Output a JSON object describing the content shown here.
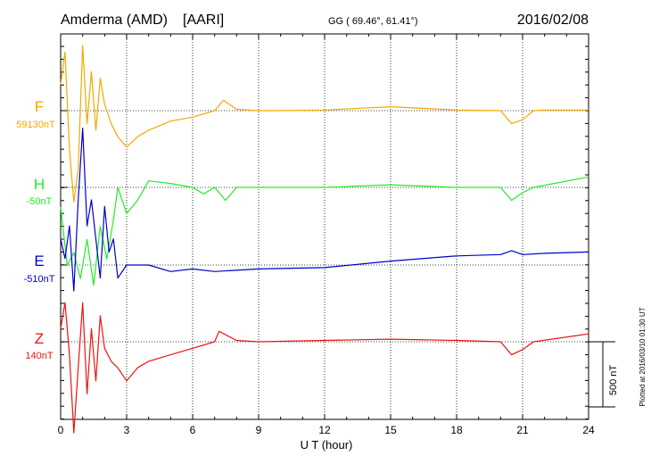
{
  "header": {
    "station": "Amderma (AMD)",
    "network": "[AARI]",
    "coords": "GG ( 69.46°,  61.41°)",
    "date": "2016/02/08"
  },
  "side_note": "Plotted at 2016/03/10 01:30 UT",
  "scale_bar": {
    "label": "500 nT",
    "value": 500
  },
  "colors": {
    "F": "#f4a800",
    "H": "#22ee22",
    "E": "#0000cc",
    "Z": "#ee1111",
    "axis": "#000000"
  },
  "chart_data": {
    "type": "line",
    "xlabel": "U T (hour)",
    "xlim": [
      0,
      24
    ],
    "xticks": [
      "0",
      "3",
      "6",
      "9",
      "12",
      "15",
      "18",
      "21",
      "24"
    ],
    "series": [
      {
        "name": "F",
        "baseline": "59130nT",
        "x": [
          0,
          0.2,
          0.4,
          0.6,
          0.8,
          1.0,
          1.2,
          1.4,
          1.6,
          1.8,
          2.0,
          2.3,
          2.6,
          3.0,
          3.5,
          4.0,
          5.0,
          6.0,
          7.0,
          7.4,
          8.0,
          9.0,
          10.0,
          12.0,
          15.0,
          18.0,
          20.0,
          20.5,
          21.0,
          21.5,
          22.0,
          24.0
        ],
        "values": [
          200,
          450,
          -300,
          -700,
          -450,
          500,
          -100,
          300,
          -150,
          250,
          50,
          -100,
          -200,
          -280,
          -200,
          -150,
          -80,
          -50,
          0,
          80,
          10,
          0,
          0,
          5,
          30,
          5,
          0,
          -100,
          -70,
          0,
          5,
          5
        ]
      },
      {
        "name": "H",
        "baseline": "-50nT",
        "x": [
          0,
          0.3,
          0.6,
          0.9,
          1.2,
          1.5,
          1.8,
          2.1,
          2.4,
          2.6,
          3.0,
          3.5,
          4.0,
          5.0,
          6.0,
          6.5,
          7.0,
          7.5,
          8.0,
          9.0,
          12.0,
          15.0,
          18.0,
          20.0,
          20.5,
          21.0,
          21.5,
          24.0
        ],
        "values": [
          -150,
          -600,
          -500,
          -700,
          -400,
          -750,
          -300,
          -550,
          -250,
          0,
          -200,
          -100,
          50,
          30,
          0,
          -50,
          0,
          -100,
          0,
          0,
          0,
          20,
          0,
          0,
          -100,
          -40,
          0,
          80
        ]
      },
      {
        "name": "E",
        "baseline": "-510nT",
        "x": [
          0,
          0.2,
          0.4,
          0.6,
          0.8,
          1.0,
          1.2,
          1.4,
          1.6,
          1.8,
          2.0,
          2.2,
          2.4,
          2.6,
          3.0,
          4.0,
          5.0,
          6.0,
          7.0,
          9.0,
          12.0,
          15.0,
          18.0,
          20.0,
          20.5,
          21.0,
          22.0,
          24.0
        ],
        "values": [
          200,
          50,
          300,
          -200,
          500,
          1050,
          300,
          500,
          200,
          -100,
          450,
          100,
          200,
          -100,
          0,
          0,
          -50,
          -30,
          -50,
          -30,
          -20,
          30,
          70,
          80,
          110,
          80,
          90,
          100
        ]
      },
      {
        "name": "Z",
        "baseline": "140nT",
        "x": [
          0,
          0.2,
          0.4,
          0.6,
          0.8,
          1.0,
          1.2,
          1.4,
          1.6,
          1.8,
          2.0,
          2.3,
          2.6,
          3.0,
          3.5,
          4.0,
          5.0,
          6.0,
          7.0,
          7.2,
          8.0,
          9.0,
          12.0,
          15.0,
          18.0,
          20.0,
          20.5,
          21.0,
          21.5,
          24.0
        ],
        "values": [
          100,
          300,
          -100,
          -700,
          -200,
          300,
          -400,
          100,
          -300,
          200,
          -50,
          -150,
          -200,
          -300,
          -200,
          -150,
          -100,
          -50,
          0,
          80,
          10,
          0,
          10,
          20,
          10,
          0,
          -100,
          -60,
          0,
          60
        ]
      }
    ]
  }
}
